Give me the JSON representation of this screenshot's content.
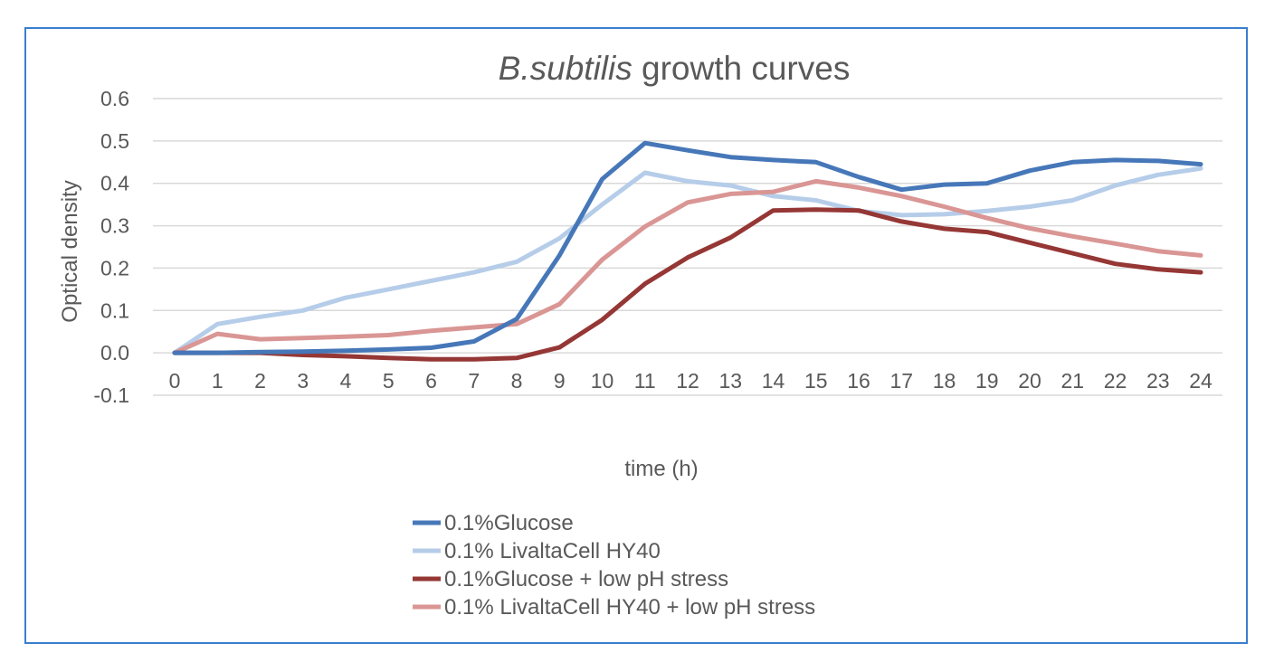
{
  "chart_data": {
    "type": "line",
    "title": {
      "italic_part": "B.subtilis",
      "rest": " growth curves"
    },
    "xlabel": "time (h)",
    "ylabel": "Optical density",
    "x": [
      0,
      1,
      2,
      3,
      4,
      5,
      6,
      7,
      8,
      9,
      10,
      11,
      12,
      13,
      14,
      15,
      16,
      17,
      18,
      19,
      20,
      21,
      22,
      23,
      24
    ],
    "x_tick_labels": [
      "0",
      "1",
      "2",
      "3",
      "4",
      "5",
      "6",
      "7",
      "8",
      "9",
      "10",
      "11",
      "12",
      "13",
      "14",
      "15",
      "16",
      "17",
      "18",
      "19",
      "20",
      "21",
      "22",
      "23",
      "24"
    ],
    "ylim": [
      -0.1,
      0.6
    ],
    "y_tick_labels": [
      "0.6",
      "0.5",
      "0.4",
      "0.3",
      "0.2",
      "0.1",
      "0.0",
      "-0.1"
    ],
    "grid": true,
    "legend_position": "bottom",
    "series": [
      {
        "name": "0.1%Glucose",
        "color": "#4677b8",
        "values": [
          0.0,
          0.0,
          0.002,
          0.003,
          0.005,
          0.008,
          0.012,
          0.027,
          0.08,
          0.23,
          0.41,
          0.495,
          0.478,
          0.462,
          0.455,
          0.45,
          0.415,
          0.385,
          0.397,
          0.4,
          0.43,
          0.45,
          0.455,
          0.453,
          0.445
        ]
      },
      {
        "name": "0.1% LivaltaCell HY40",
        "color": "#b6cde9",
        "values": [
          0.0,
          0.068,
          0.085,
          0.1,
          0.13,
          0.15,
          0.17,
          0.19,
          0.215,
          0.27,
          0.35,
          0.425,
          0.405,
          0.395,
          0.37,
          0.36,
          0.335,
          0.325,
          0.327,
          0.335,
          0.345,
          0.36,
          0.395,
          0.42,
          0.435
        ]
      },
      {
        "name": "0.1%Glucose + low pH stress",
        "color": "#953735",
        "values": [
          0.0,
          0.0,
          0.0,
          -0.005,
          -0.008,
          -0.012,
          -0.015,
          -0.015,
          -0.012,
          0.013,
          0.078,
          0.163,
          0.225,
          0.272,
          0.336,
          0.338,
          0.336,
          0.31,
          0.293,
          0.285,
          0.26,
          0.235,
          0.21,
          0.197,
          0.19
        ]
      },
      {
        "name": "0.1% LivaltaCell HY40 + low pH stress",
        "color": "#d99694",
        "values": [
          0.0,
          0.045,
          0.032,
          0.035,
          0.038,
          0.042,
          0.052,
          0.06,
          0.068,
          0.115,
          0.22,
          0.298,
          0.355,
          0.375,
          0.38,
          0.405,
          0.39,
          0.37,
          0.345,
          0.318,
          0.294,
          0.275,
          0.258,
          0.24,
          0.23
        ]
      }
    ]
  }
}
